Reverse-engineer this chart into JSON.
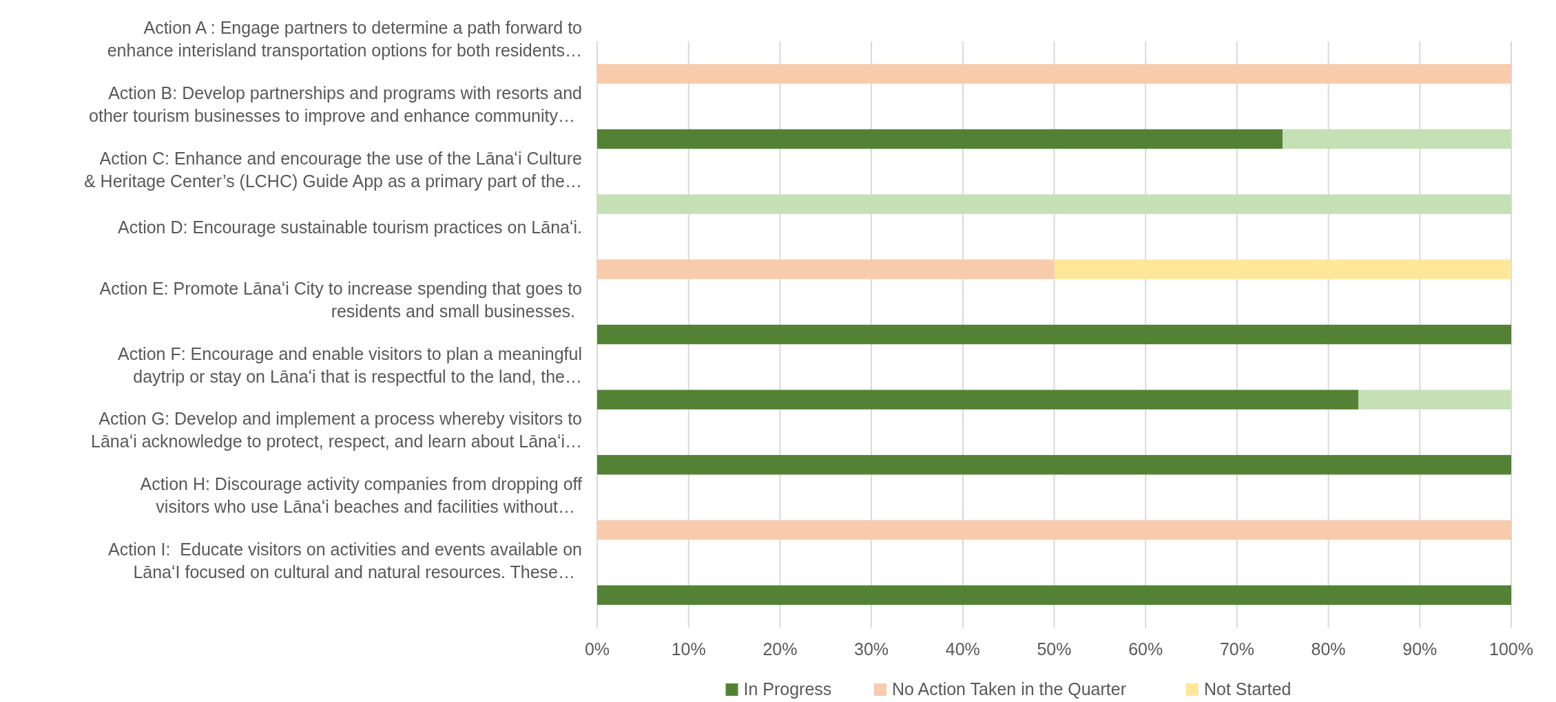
{
  "chart_data": {
    "type": "bar",
    "orientation": "horizontal",
    "stacked": true,
    "categories": [
      "Action A : Engage partners to determine a path forward to\nenhance interisland transportation options for both residents…",
      "Action B: Develop partnerships and programs with resorts and\nother tourism businesses to improve and enhance community…",
      "Action C: Enhance and encourage the use of the Lānaʻi Culture\n& Heritage Center’s (LCHC) Guide App as a primary part of the…",
      "Action D: Encourage sustainable tourism practices on Lānaʻi.",
      "Action E: Promote Lānaʻi City to increase spending that goes to\nresidents and small businesses.",
      "Action F: Encourage and enable visitors to plan a meaningful\ndaytrip or stay on Lānaʻi that is respectful to the land, the…",
      "Action G: Develop and implement a process whereby visitors to\nLānaʻi acknowledge to protect, respect, and learn about Lānaʻi…",
      "Action H: Discourage activity companies from dropping off\nvisitors who use Lānaʻi beaches and facilities without…",
      "Action I:  Educate visitors on activities and events available on\nLānaʻI focused on cultural and natural resources. These…"
    ],
    "series": [
      {
        "name": "In Progress",
        "color": "#548235",
        "values": [
          0,
          75,
          0,
          0,
          100,
          83.3,
          100,
          0,
          100
        ]
      },
      {
        "name": "No Action Taken in the Quarter",
        "color": "#f8cbad",
        "values": [
          100,
          0,
          0,
          50,
          0,
          0,
          0,
          100,
          0
        ]
      },
      {
        "name": "Not Started",
        "color": "#ffe699",
        "values": [
          0,
          0,
          0,
          50,
          0,
          0,
          0,
          0,
          0
        ]
      },
      {
        "color": "#c5e0b4",
        "values": [
          0,
          25,
          100,
          0,
          0,
          16.7,
          0,
          0,
          0
        ]
      }
    ],
    "xlim": [
      0,
      100
    ],
    "xticks": [
      {
        "value": 0,
        "label": "0%"
      },
      {
        "value": 10,
        "label": "10%"
      },
      {
        "value": 20,
        "label": "20%"
      },
      {
        "value": 30,
        "label": "30%"
      },
      {
        "value": 40,
        "label": "40%"
      },
      {
        "value": 50,
        "label": "50%"
      },
      {
        "value": 60,
        "label": "60%"
      },
      {
        "value": 70,
        "label": "70%"
      },
      {
        "value": 80,
        "label": "80%"
      },
      {
        "value": 90,
        "label": "90%"
      },
      {
        "value": 100,
        "label": "100%"
      }
    ],
    "grid": "x",
    "legend": "bottom"
  }
}
